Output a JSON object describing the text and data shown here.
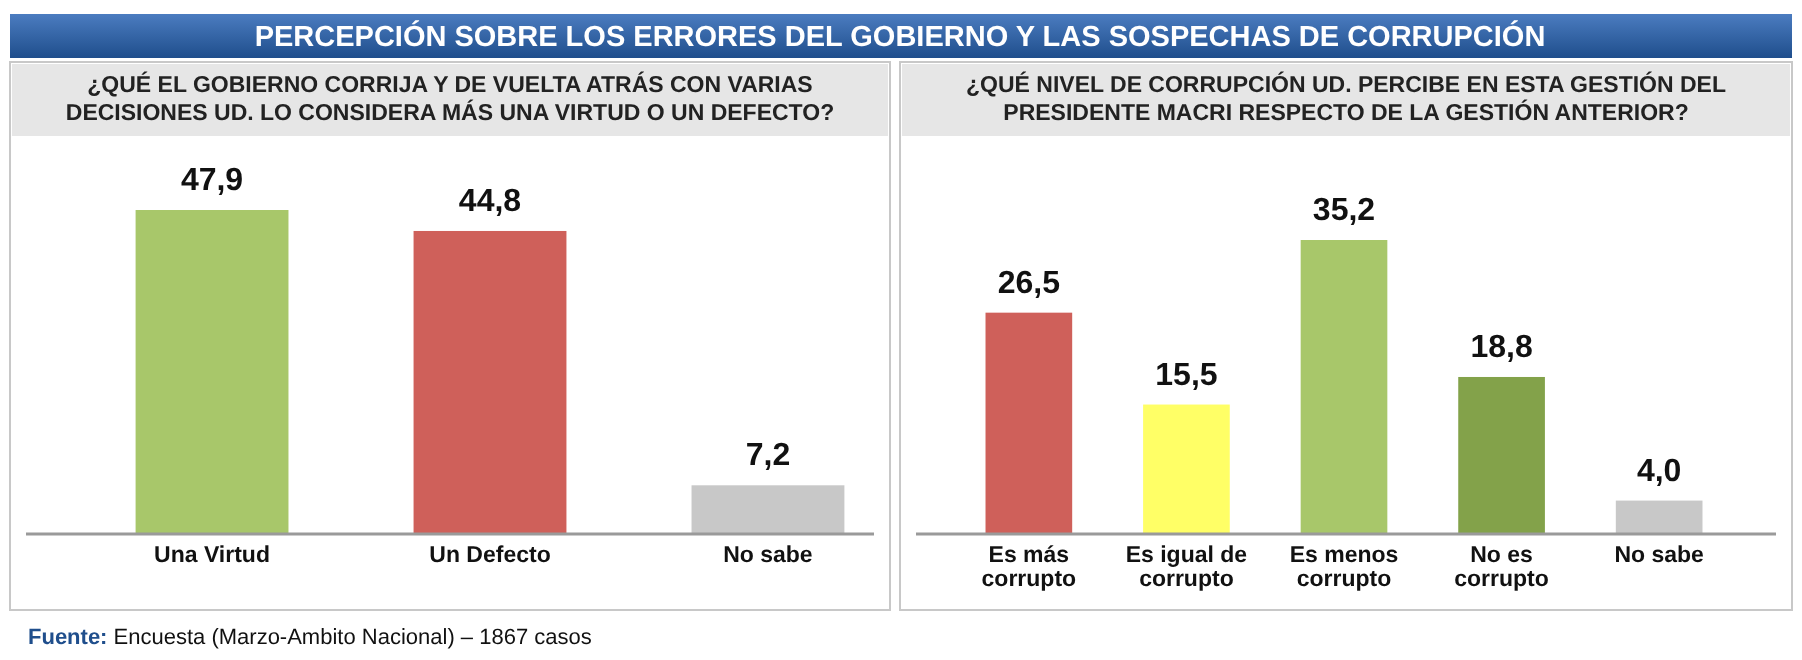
{
  "chart_data": [
    {
      "type": "bar",
      "title": "PERCEPCIÓN SOBRE LOS ERRORES DEL GOBIERNO Y LAS SOSPECHAS DE CORRUPCIÓN",
      "subtitle": "¿QUÉ EL GOBIERNO CORRIJA Y DE VUELTA ATRÁS CON VARIAS DECISIONES UD. LO CONSIDERA MÁS UNA VIRTUD O UN DEFECTO?",
      "categories": [
        "Una Virtud",
        "Un Defecto",
        "No sabe"
      ],
      "values": [
        47.9,
        44.8,
        7.2
      ],
      "colors": [
        "#a8c76a",
        "#cf605a",
        "#c8c8c8"
      ],
      "value_labels": [
        "47,9",
        "44,8",
        "7,2"
      ],
      "annotations": [
        "Fuente: Encuesta (Marzo-Ambito Nacional) – 1867 casos"
      ]
    },
    {
      "type": "bar",
      "subtitle": "¿QUÉ NIVEL DE CORRUPCIÓN UD. PERCIBE EN ESTA GESTIÓN DEL PRESIDENTE MACRI RESPECTO DE LA GESTIÓN ANTERIOR?",
      "categories": [
        "Es más corrupto",
        "Es igual de corrupto",
        "Es menos corrupto",
        "No es corrupto",
        "No sabe"
      ],
      "values": [
        26.5,
        15.5,
        35.2,
        18.8,
        4.0
      ],
      "colors": [
        "#cf605a",
        "#ffff66",
        "#a8c76a",
        "#83a24a",
        "#c8c8c8"
      ],
      "value_labels": [
        "26,5",
        "15,5",
        "35,2",
        "18,8",
        "4,0"
      ]
    }
  ]
}
